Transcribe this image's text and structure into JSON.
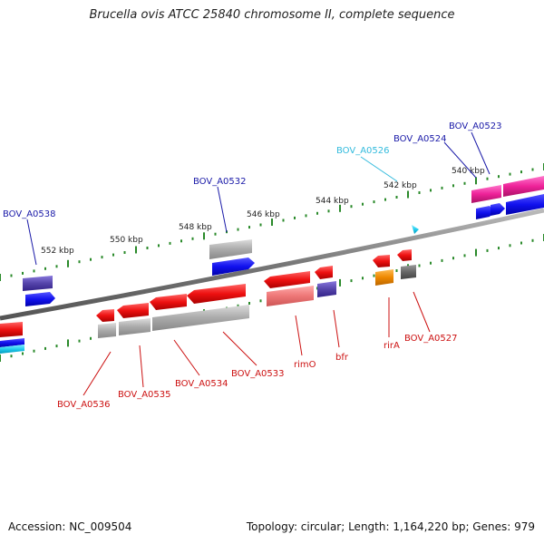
{
  "title": "Brucella ovis ATCC 25840 chromosome II, complete sequence",
  "footer": {
    "accession": "Accession: NC_009504",
    "summary": "Topology: circular; Length: 1,164,220 bp; Genes: 979"
  },
  "ticks": [
    "540 kbp",
    "542 kbp",
    "544 kbp",
    "546 kbp",
    "548 kbp",
    "550 kbp",
    "552 kbp"
  ],
  "labels": {
    "top": [
      {
        "text": "BOV_A0523",
        "color": "#1a1aa8"
      },
      {
        "text": "BOV_A0524",
        "color": "#1a1aa8"
      },
      {
        "text": "BOV_A0526",
        "color": "#33bbdd"
      },
      {
        "text": "BOV_A0532",
        "color": "#1a1aa8"
      },
      {
        "text": "BOV_A0538",
        "color": "#1a1aa8"
      }
    ],
    "bottom": [
      {
        "text": "BOV_A0527",
        "color": "#cc1111"
      },
      {
        "text": "rirA",
        "color": "#cc1111"
      },
      {
        "text": "bfr",
        "color": "#cc1111"
      },
      {
        "text": "rimO",
        "color": "#cc1111"
      },
      {
        "text": "BOV_A0533",
        "color": "#cc1111"
      },
      {
        "text": "BOV_A0534",
        "color": "#cc1111"
      },
      {
        "text": "BOV_A0535",
        "color": "#cc1111"
      },
      {
        "text": "BOV_A0536",
        "color": "#cc1111"
      }
    ]
  },
  "colors": {
    "backbone": "#888888",
    "tick": "#2a8a2a",
    "forward_gene": "#1111ee",
    "reverse_gene": "#ee1111",
    "grey_gene": "#aaaaaa",
    "pink_gene": "#ee2299",
    "purple_gene": "#5544aa",
    "orange_gene": "#ee8800",
    "cyan_gene": "#22ccee"
  }
}
